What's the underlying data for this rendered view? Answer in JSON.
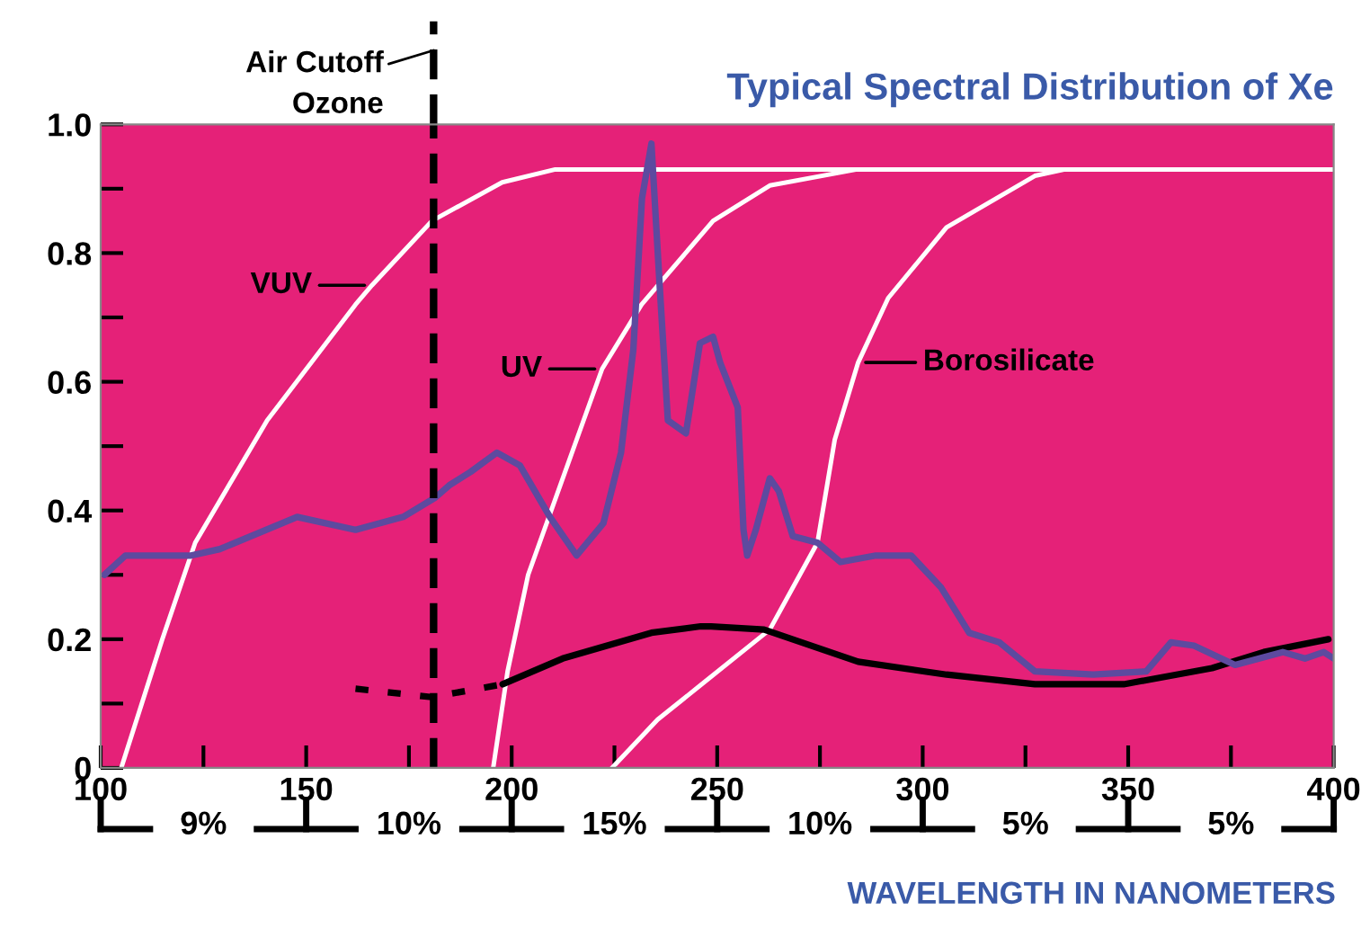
{
  "chart_data": {
    "type": "line",
    "title": "Typical Spectral Distribution of Xe",
    "xlabel": "WAVELENGTH IN NANOMETERS",
    "xlim": [
      100,
      400
    ],
    "ylim": [
      0,
      1.0
    ],
    "xticks": [
      100,
      {
        "value": 125,
        "label": null
      },
      150,
      {
        "value": 175,
        "label": null
      },
      200,
      {
        "value": 225,
        "label": null
      },
      250,
      {
        "value": 275,
        "label": null
      },
      300,
      {
        "value": 325,
        "label": null
      },
      350,
      {
        "value": 375,
        "label": null
      },
      400
    ],
    "yticks": [
      {
        "value": 0,
        "label": "0"
      },
      {
        "value": 0.1,
        "label": null
      },
      {
        "value": 0.2,
        "label": "0.2"
      },
      {
        "value": 0.3,
        "label": null
      },
      {
        "value": 0.4,
        "label": "0.4"
      },
      {
        "value": 0.5,
        "label": null
      },
      {
        "value": 0.6,
        "label": "0.6"
      },
      {
        "value": 0.7,
        "label": null
      },
      {
        "value": 0.8,
        "label": "0.8"
      },
      {
        "value": 0.9,
        "label": null
      },
      {
        "value": 1.0,
        "label": "1.0"
      }
    ],
    "grid": false,
    "marker": "none",
    "series": [
      {
        "color": "#ffffff",
        "line_style": "solid",
        "x": [
          105,
          115,
          123,
          140.5,
          162,
          166,
          180.6,
          197.7,
          210.6,
          400
        ],
        "values": [
          0,
          0.2,
          0.35,
          0.54,
          0.72,
          0.75,
          0.85,
          0.91,
          0.93,
          0.93
        ]
      },
      {
        "color": "#ffffff",
        "line_style": "solid",
        "x": [
          195.5,
          199,
          204,
          215.8,
          222,
          231.6,
          249,
          262.8,
          284,
          400
        ],
        "values": [
          0,
          0.15,
          0.3,
          0.51,
          0.62,
          0.72,
          0.85,
          0.905,
          0.93,
          0.93
        ]
      },
      {
        "color": "#ffffff",
        "line_style": "solid",
        "x": [
          224.4,
          235.5,
          262.8,
          274.4,
          278.6,
          284.3,
          291.6,
          305.8,
          327.3,
          334.6,
          400
        ],
        "values": [
          0,
          0.075,
          0.215,
          0.35,
          0.51,
          0.63,
          0.73,
          0.84,
          0.92,
          0.93,
          0.93
        ]
      },
      {
        "color": "#000000",
        "line_style": "dotted",
        "x": [
          162,
          180.6,
          197.8
        ],
        "values": [
          0.123,
          0.11,
          0.13
        ]
      },
      {
        "color": "#000000",
        "line_style": "solid",
        "x": [
          197.8,
          212.4,
          234,
          246,
          248.5,
          261.4,
          284.3,
          305.8,
          327.3,
          348.9,
          370.4,
          383,
          398.7
        ],
        "values": [
          0.13,
          0.17,
          0.21,
          0.22,
          0.22,
          0.215,
          0.165,
          0.145,
          0.13,
          0.13,
          0.155,
          0.18,
          0.2
        ]
      },
      {
        "color": "#5d4a9f",
        "line_style": "solid",
        "x": [
          100.9,
          106,
          122,
          129,
          147.8,
          162,
          173.6,
          181.4,
          185,
          190,
          196.4,
          202,
          209.3,
          215.8,
          222.3,
          226.6,
          229.6,
          231.7,
          234,
          236,
          238,
          242.4,
          245.8,
          249,
          250.7,
          255,
          256.4,
          257.3,
          259.4,
          262.8,
          265,
          268.4,
          274.4,
          280,
          288.6,
          297.2,
          304.5,
          311.3,
          318.7,
          327.3,
          341.5,
          354.4,
          360.4,
          366,
          376,
          387.6,
          393,
          397.6,
          400
        ],
        "values": [
          0.3,
          0.33,
          0.33,
          0.34,
          0.39,
          0.37,
          0.39,
          0.42,
          0.44,
          0.46,
          0.49,
          0.47,
          0.39,
          0.33,
          0.38,
          0.49,
          0.65,
          0.885,
          0.97,
          0.75,
          0.54,
          0.52,
          0.66,
          0.67,
          0.63,
          0.56,
          0.37,
          0.33,
          0.37,
          0.45,
          0.43,
          0.36,
          0.35,
          0.32,
          0.33,
          0.33,
          0.28,
          0.21,
          0.195,
          0.15,
          0.145,
          0.15,
          0.195,
          0.19,
          0.16,
          0.18,
          0.17,
          0.18,
          0.17
        ]
      }
    ],
    "ref_lines": [
      {
        "axis": "x",
        "value": 181,
        "label": "Air Cutoff\nOzone",
        "color": "#000000",
        "line_style": "dashed"
      }
    ],
    "annotations": [
      {
        "text": "VUV",
        "x": 166,
        "y": 0.75
      },
      {
        "text": "UV",
        "x": 222,
        "y": 0.62
      },
      {
        "text": "Borosilicate",
        "x": 284.3,
        "y": 0.63
      },
      "9%",
      "10%",
      "15%",
      "10%",
      "5%",
      "5%"
    ]
  }
}
